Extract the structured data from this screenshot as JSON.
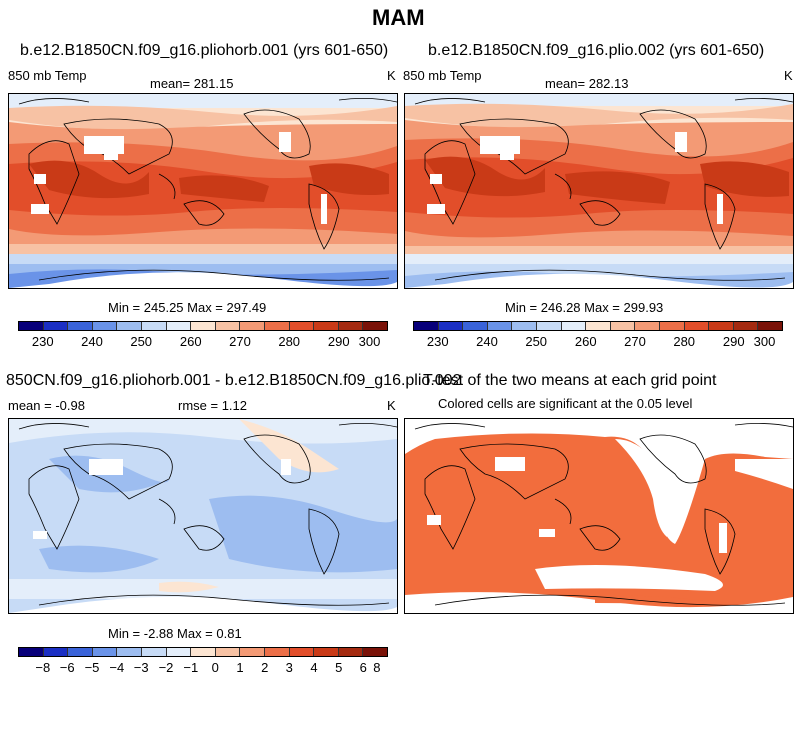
{
  "figure": {
    "season": "MAM"
  },
  "panel_a": {
    "title": "b.e12.B1850CN.f09_g16.pliohorb.001 (yrs 601-650)",
    "variable": "850 mb Temp",
    "mean": "mean=  281.15",
    "units": "K",
    "minmax": "Min = 245.25 Max = 297.49",
    "colorbar_labels": [
      "230",
      "240",
      "250",
      "260",
      "270",
      "280",
      "290",
      "300"
    ]
  },
  "panel_b": {
    "title": "b.e12.B1850CN.f09_g16.plio.002 (yrs 601-650)",
    "variable": "850 mb Temp",
    "mean": "mean=  282.13",
    "units": "K",
    "minmax": "Min = 246.28 Max = 299.93",
    "colorbar_labels": [
      "230",
      "240",
      "250",
      "260",
      "270",
      "280",
      "290",
      "300"
    ]
  },
  "panel_c": {
    "title": "850CN.f09_g16.pliohorb.001 - b.e12.B1850CN.f09_g16.plio.002",
    "mean": "mean =   -0.98",
    "rmse": "rmse =    1.12",
    "units": "K",
    "minmax": "Min =  -2.88 Max =    0.81",
    "colorbar_labels": [
      "−8",
      "−6",
      "−5",
      "−4",
      "−3",
      "−2",
      "−1",
      "0",
      "1",
      "2",
      "3",
      "4",
      "5",
      "6",
      "8"
    ]
  },
  "panel_d": {
    "title": "T-test of the two means at each grid point",
    "subtitle": "Colored cells are significant at the 0.05 level"
  },
  "colors": {
    "temp_scale": [
      "#08007a",
      "#1b2fc4",
      "#3a63d9",
      "#6a93e8",
      "#9dbdf0",
      "#c7dbf6",
      "#e4eefa",
      "#fce5d2",
      "#f7c2a4",
      "#f39a75",
      "#ec6f48",
      "#e24e2a",
      "#c93a17",
      "#a42a10",
      "#7a1208"
    ],
    "diff_scale": [
      "#08007a",
      "#1b2fc4",
      "#3a63d9",
      "#6a93e8",
      "#9dbdf0",
      "#c7dbf6",
      "#e4eefa",
      "#fce5d2",
      "#f7c2a4",
      "#f39a75",
      "#ec6f48",
      "#e24e2a",
      "#c93a17",
      "#a42a10"
    ],
    "sig_fill": "#f26d3d"
  }
}
